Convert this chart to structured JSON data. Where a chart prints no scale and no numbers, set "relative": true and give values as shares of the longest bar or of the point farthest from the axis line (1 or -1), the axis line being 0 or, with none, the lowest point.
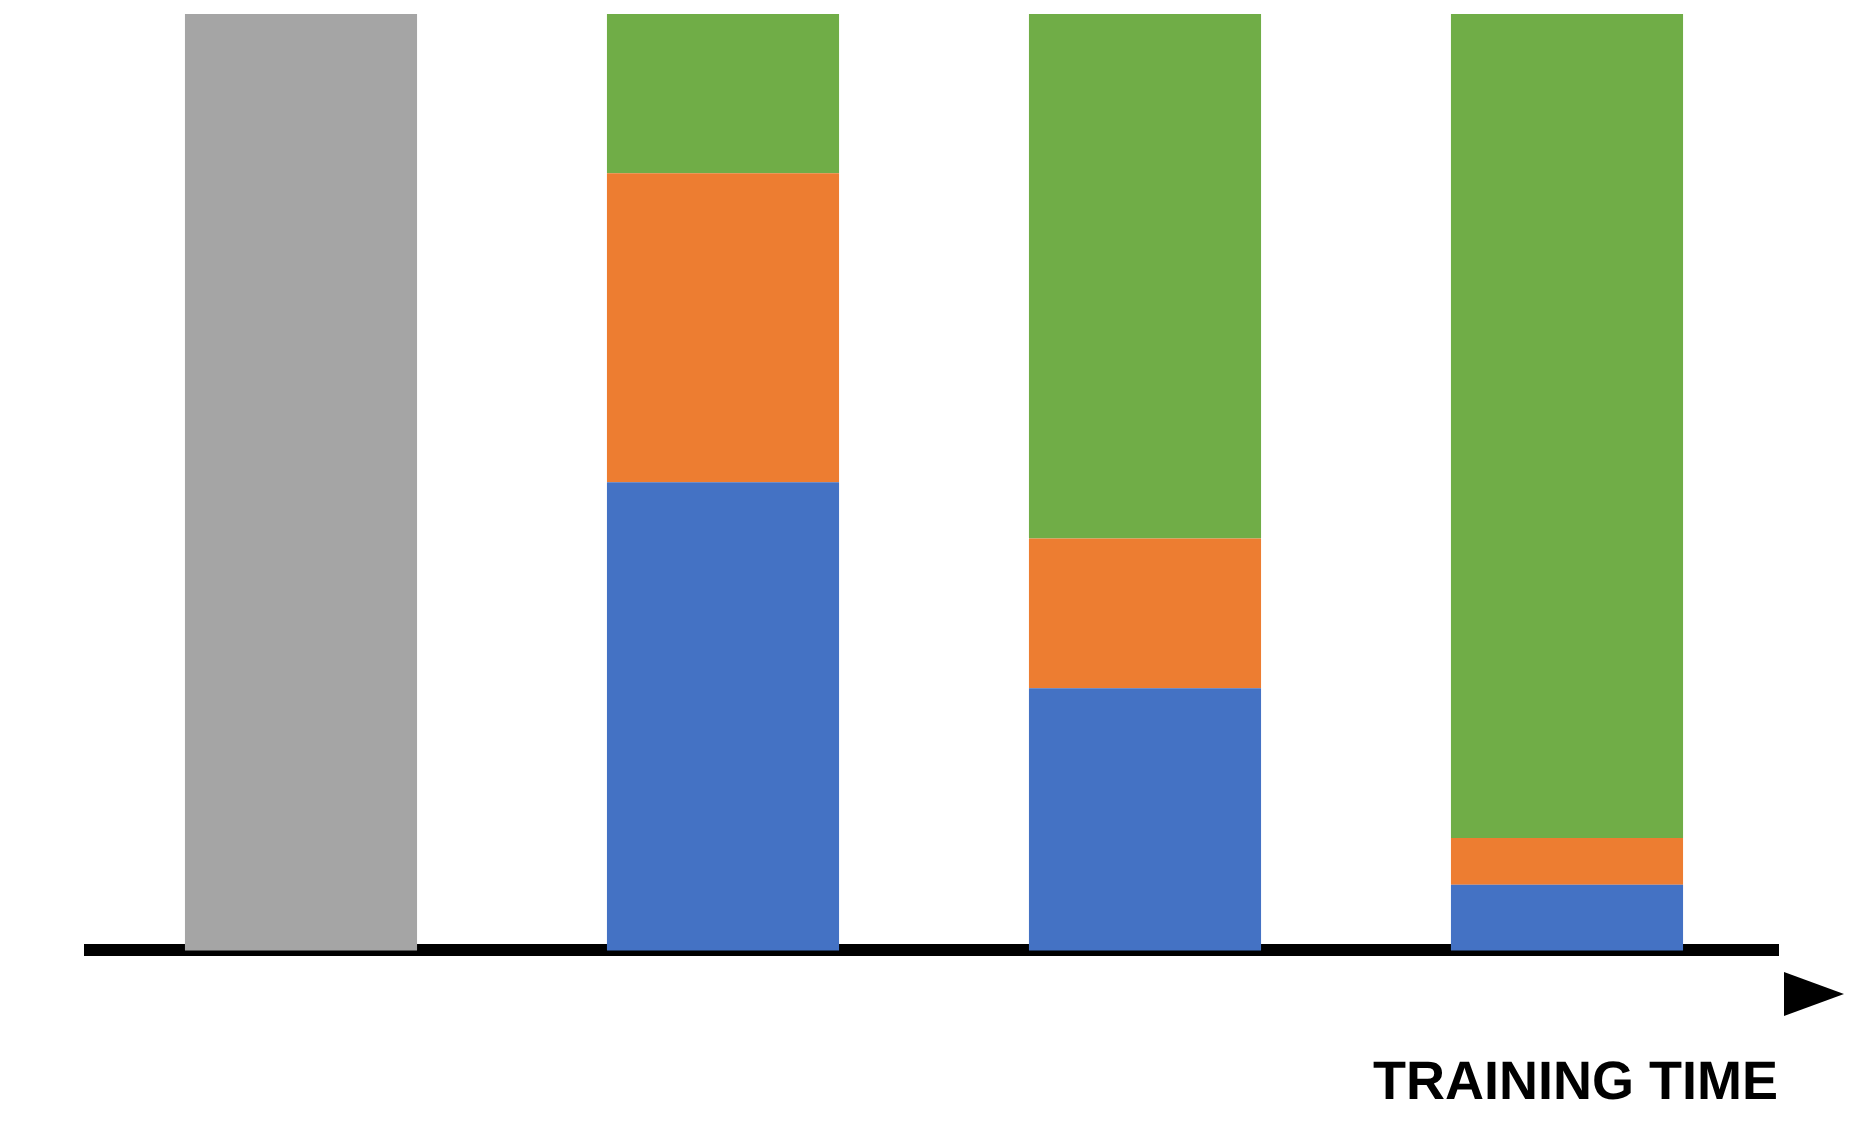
{
  "chart_data": {
    "type": "bar",
    "relative": true,
    "stacked": true,
    "xlabel": "TRAINING TIME",
    "categories": [
      null,
      null,
      null,
      null
    ],
    "legend": false,
    "grid": false,
    "series": [
      {
        "color": "#4472c4",
        "values": [
          null,
          0.5,
          0.28,
          0.07
        ]
      },
      {
        "color": "#ed7d31",
        "values": [
          null,
          0.33,
          0.16,
          0.05
        ]
      },
      {
        "color": "#70ad47",
        "values": [
          null,
          0.17,
          0.56,
          0.88
        ]
      },
      {
        "color": "#a5a5a5",
        "values": [
          1,
          null,
          null,
          null
        ]
      }
    ]
  }
}
